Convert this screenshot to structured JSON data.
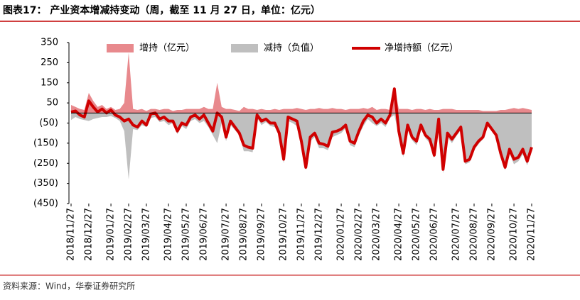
{
  "chart_data": {
    "type": "area-line",
    "title": "图表17：  产业资本增减持变动（周，截至 11 月 27 日，单位：亿元）",
    "source": "资料来源：Wind，华泰证券研究所",
    "categories": [
      "2018/11/27",
      null,
      null,
      null,
      "2018/12/27",
      null,
      null,
      null,
      null,
      "2019/01/27",
      null,
      null,
      null,
      "2019/02/27",
      null,
      null,
      null,
      "2019/03/27",
      null,
      null,
      null,
      null,
      "2019/04/27",
      null,
      null,
      null,
      "2019/05/27",
      null,
      null,
      null,
      "2019/06/27",
      null,
      null,
      null,
      null,
      "2019/07/27",
      null,
      null,
      null,
      "2019/08/27",
      null,
      null,
      null,
      "2019/09/27",
      null,
      null,
      null,
      null,
      "2019/10/27",
      null,
      null,
      null,
      "2019/11/27",
      null,
      null,
      null,
      "2019/12/27",
      null,
      null,
      null,
      null,
      "2020/01/27",
      null,
      null,
      null,
      "2020/02/27",
      null,
      null,
      null,
      "2020/03/27",
      null,
      null,
      null,
      null,
      "2020/04/27",
      null,
      null,
      null,
      "2020/05/27",
      null,
      null,
      null,
      "2020/06/27",
      null,
      null,
      null,
      null,
      "2020/07/27",
      null,
      null,
      null,
      "2020/08/27",
      null,
      null,
      null,
      "2020/09/27",
      null,
      null,
      null,
      null,
      "2020/10/27",
      null,
      null,
      null,
      "2020/11/27"
    ],
    "series": [
      {
        "name": "增持（亿元）",
        "color": "#e8898d",
        "kind": "area",
        "values": [
          40,
          30,
          20,
          15,
          100,
          60,
          30,
          40,
          20,
          30,
          15,
          20,
          50,
          300,
          20,
          15,
          20,
          10,
          20,
          20,
          15,
          20,
          20,
          10,
          15,
          15,
          20,
          20,
          20,
          20,
          30,
          20,
          20,
          150,
          30,
          20,
          20,
          15,
          10,
          30,
          20,
          20,
          15,
          20,
          15,
          15,
          20,
          15,
          20,
          20,
          20,
          25,
          20,
          15,
          20,
          20,
          25,
          20,
          20,
          25,
          20,
          20,
          15,
          20,
          20,
          20,
          25,
          20,
          30,
          15,
          20,
          20,
          15,
          130,
          20,
          20,
          20,
          15,
          20,
          20,
          15,
          20,
          15,
          15,
          20,
          20,
          20,
          15,
          15,
          15,
          15,
          15,
          15,
          10,
          10,
          10,
          10,
          15,
          15,
          20,
          25,
          20,
          25,
          20,
          15
        ]
      },
      {
        "name": "减持（负值）",
        "color": "#bfbfbf",
        "kind": "area",
        "values": [
          -35,
          -20,
          -30,
          -35,
          -40,
          -30,
          -25,
          -20,
          -20,
          -15,
          -25,
          -40,
          -90,
          -330,
          -80,
          -85,
          -60,
          -70,
          -25,
          -20,
          -45,
          -40,
          -60,
          -50,
          -105,
          -65,
          -80,
          -40,
          -30,
          -50,
          -40,
          -70,
          -110,
          -150,
          -50,
          -140,
          -60,
          -85,
          -110,
          -190,
          -190,
          -195,
          -25,
          -60,
          -45,
          -65,
          -70,
          -115,
          -250,
          -40,
          -50,
          -65,
          -160,
          -285,
          -140,
          -120,
          -175,
          -175,
          -185,
          -120,
          -110,
          -100,
          -75,
          -160,
          -170,
          -110,
          -65,
          -30,
          -50,
          -65,
          -50,
          -70,
          -25,
          -10,
          -110,
          -220,
          -80,
          -135,
          -160,
          -80,
          -125,
          -150,
          -225,
          -45,
          -300,
          -120,
          -150,
          -115,
          -85,
          -255,
          -245,
          -185,
          -155,
          -130,
          -60,
          -90,
          -120,
          -215,
          -285,
          -200,
          -255,
          -240,
          -205,
          -260,
          -185
        ]
      },
      {
        "name": "净增持额（亿元）",
        "color": "#d00000",
        "kind": "line",
        "values": [
          5,
          10,
          -10,
          -20,
          60,
          30,
          5,
          20,
          0,
          15,
          -10,
          -20,
          -40,
          -30,
          -60,
          -70,
          -40,
          -60,
          -5,
          0,
          -30,
          -20,
          -40,
          -40,
          -90,
          -50,
          -60,
          -20,
          -10,
          -30,
          -10,
          -50,
          -90,
          0,
          -20,
          -120,
          -40,
          -70,
          -100,
          -160,
          -170,
          -175,
          -10,
          -40,
          -30,
          -50,
          -50,
          -100,
          -230,
          -20,
          -30,
          -40,
          -140,
          -270,
          -120,
          -100,
          -150,
          -155,
          -165,
          -95,
          -90,
          -80,
          -60,
          -140,
          -150,
          -90,
          -40,
          -10,
          -20,
          -50,
          -30,
          -50,
          -10,
          120,
          -90,
          -200,
          -60,
          -120,
          -140,
          -60,
          -110,
          -130,
          -210,
          -30,
          -280,
          -100,
          -130,
          -100,
          -70,
          -240,
          -230,
          -170,
          -140,
          -120,
          -50,
          -80,
          -110,
          -200,
          -270,
          -180,
          -230,
          -220,
          -180,
          -240,
          -170
        ]
      }
    ],
    "ylim": [
      -450,
      350
    ],
    "yticks": [
      350,
      250,
      150,
      50,
      {
        "value": -50,
        "label": "(50)"
      },
      {
        "value": -150,
        "label": "(150)"
      },
      {
        "value": -250,
        "label": "(250)"
      },
      {
        "value": -350,
        "label": "(350)"
      },
      {
        "value": -450,
        "label": "(450)"
      }
    ]
  }
}
